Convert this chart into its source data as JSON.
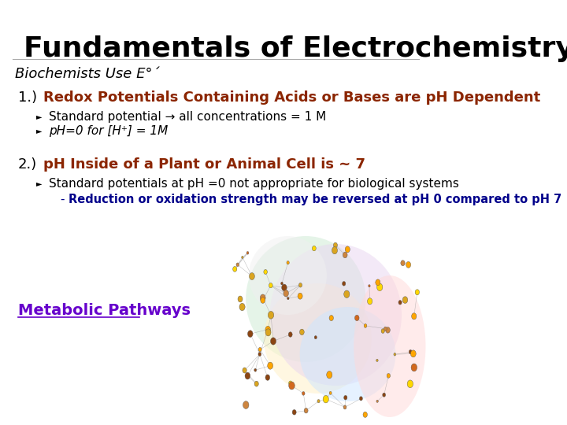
{
  "title": "Fundamentals of Electrochemistry",
  "subtitle": "Biochemists Use E°´",
  "section1_number": "1.)",
  "section1_heading": "Redox Potentials Containing Acids or Bases are pH Dependent",
  "section1_bullet1": "Standard potential → all concentrations = 1 M",
  "section1_bullet2": "pH=0 for [H⁺] = 1M",
  "section2_number": "2.)",
  "section2_heading": "pH Inside of a Plant or Animal Cell is ~ 7",
  "section2_bullet1": "Standard potentials at pH =0 not appropriate for biological systems",
  "section2_subbullet": "Reduction or oxidation strength may be reversed at pH 0 compared to pH 7",
  "metabolic_label": "Metabolic Pathways",
  "bg_color": "#ffffff",
  "title_color": "#000000",
  "subtitle_color": "#000000",
  "heading_color": "#8B2500",
  "bullet_color": "#000000",
  "subbullet_color": "#00008B",
  "metabolic_color": "#6600CC",
  "title_fontsize": 26,
  "subtitle_fontsize": 13,
  "heading_fontsize": 13,
  "bullet_fontsize": 11,
  "subbullet_fontsize": 10.5,
  "metabolic_fontsize": 14,
  "blobs": [
    [
      510,
      380,
      200,
      160,
      "#d4edda",
      0.6
    ],
    [
      530,
      430,
      180,
      140,
      "#fff3cd",
      0.6
    ],
    [
      560,
      400,
      220,
      180,
      "#e8d5f0",
      0.5
    ],
    [
      580,
      450,
      160,
      120,
      "#cce5ff",
      0.5
    ],
    [
      650,
      440,
      120,
      180,
      "#ffd9d9",
      0.5
    ],
    [
      480,
      350,
      130,
      100,
      "#f0f0f0",
      0.5
    ]
  ]
}
